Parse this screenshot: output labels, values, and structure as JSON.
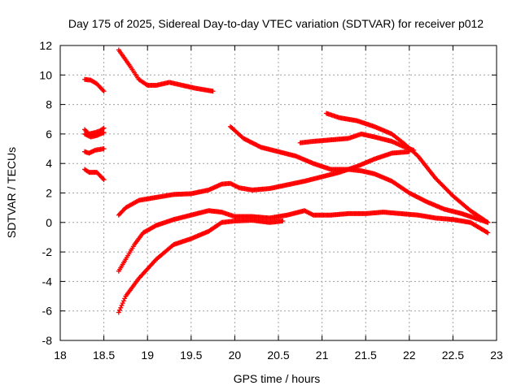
{
  "chart_data": {
    "type": "scatter",
    "title": "Day 175 of 2025, Sidereal Day-to-day VTEC variation (SDTVAR) for receiver p012",
    "xlabel": "GPS time / hours",
    "ylabel": "SDTVAR / TECUs",
    "xlim": [
      18,
      23
    ],
    "ylim": [
      -8,
      12
    ],
    "xticks": [
      "18",
      "18.5",
      "19",
      "19.5",
      "20",
      "20.5",
      "21",
      "21.5",
      "22",
      "22.5",
      "23"
    ],
    "yticks": [
      "-8",
      "-6",
      "-4",
      "-2",
      "0",
      "2",
      "4",
      "6",
      "8",
      "10",
      "12"
    ],
    "grid": true,
    "marker": "plus",
    "color": "#ff0000",
    "series": [
      {
        "name": "track-1",
        "points": [
          [
            18.28,
            9.7
          ],
          [
            18.35,
            9.65
          ],
          [
            18.42,
            9.4
          ],
          [
            18.5,
            8.9
          ]
        ]
      },
      {
        "name": "track-2",
        "points": [
          [
            18.28,
            6.3
          ],
          [
            18.33,
            6.0
          ],
          [
            18.4,
            6.1
          ],
          [
            18.45,
            6.2
          ],
          [
            18.5,
            6.4
          ]
        ]
      },
      {
        "name": "track-3",
        "points": [
          [
            18.28,
            6.0
          ],
          [
            18.35,
            5.8
          ],
          [
            18.42,
            5.9
          ],
          [
            18.5,
            6.1
          ]
        ]
      },
      {
        "name": "track-4",
        "points": [
          [
            18.28,
            4.8
          ],
          [
            18.33,
            4.7
          ],
          [
            18.4,
            4.9
          ],
          [
            18.5,
            5.0
          ]
        ]
      },
      {
        "name": "track-5",
        "points": [
          [
            18.28,
            3.6
          ],
          [
            18.33,
            3.4
          ],
          [
            18.42,
            3.4
          ],
          [
            18.5,
            2.9
          ]
        ]
      },
      {
        "name": "track-6",
        "points": [
          [
            18.67,
            11.7
          ],
          [
            18.8,
            10.6
          ],
          [
            18.9,
            9.7
          ],
          [
            19.0,
            9.3
          ],
          [
            19.1,
            9.3
          ],
          [
            19.25,
            9.5
          ],
          [
            19.4,
            9.3
          ],
          [
            19.55,
            9.1
          ],
          [
            19.75,
            8.9
          ]
        ]
      },
      {
        "name": "track-7",
        "points": [
          [
            18.67,
            0.5
          ],
          [
            18.75,
            1.0
          ],
          [
            18.9,
            1.5
          ],
          [
            19.1,
            1.7
          ],
          [
            19.3,
            1.9
          ],
          [
            19.5,
            1.95
          ],
          [
            19.7,
            2.2
          ],
          [
            19.85,
            2.6
          ],
          [
            19.95,
            2.65
          ],
          [
            20.05,
            2.35
          ],
          [
            20.2,
            2.2
          ],
          [
            20.4,
            2.3
          ],
          [
            20.6,
            2.55
          ],
          [
            20.8,
            2.8
          ],
          [
            21.0,
            3.1
          ],
          [
            21.2,
            3.4
          ],
          [
            21.4,
            3.8
          ],
          [
            21.6,
            4.3
          ],
          [
            21.8,
            4.7
          ],
          [
            22.0,
            4.8
          ]
        ]
      },
      {
        "name": "track-8",
        "points": [
          [
            18.67,
            -3.3
          ],
          [
            18.75,
            -2.5
          ],
          [
            18.85,
            -1.5
          ],
          [
            18.95,
            -0.7
          ],
          [
            19.1,
            -0.2
          ],
          [
            19.3,
            0.2
          ],
          [
            19.5,
            0.5
          ],
          [
            19.7,
            0.8
          ],
          [
            19.85,
            0.7
          ],
          [
            20.0,
            0.4
          ],
          [
            20.2,
            0.4
          ],
          [
            20.4,
            0.3
          ],
          [
            20.6,
            0.5
          ],
          [
            20.8,
            0.8
          ],
          [
            20.9,
            0.5
          ],
          [
            21.1,
            0.5
          ],
          [
            21.3,
            0.6
          ],
          [
            21.5,
            0.6
          ],
          [
            21.7,
            0.7
          ],
          [
            21.9,
            0.6
          ],
          [
            22.1,
            0.5
          ],
          [
            22.3,
            0.3
          ],
          [
            22.5,
            0.2
          ],
          [
            22.7,
            0.0
          ],
          [
            22.9,
            -0.7
          ]
        ]
      },
      {
        "name": "track-9",
        "points": [
          [
            18.67,
            -6.1
          ],
          [
            18.75,
            -5.0
          ],
          [
            18.9,
            -3.8
          ],
          [
            19.1,
            -2.5
          ],
          [
            19.3,
            -1.5
          ],
          [
            19.5,
            -1.1
          ],
          [
            19.7,
            -0.6
          ],
          [
            19.85,
            0.0
          ],
          [
            20.0,
            0.1
          ],
          [
            20.2,
            0.15
          ],
          [
            20.4,
            0.0
          ],
          [
            20.55,
            0.1
          ]
        ]
      },
      {
        "name": "track-10",
        "points": [
          [
            19.95,
            6.5
          ],
          [
            20.1,
            5.7
          ],
          [
            20.3,
            5.1
          ],
          [
            20.5,
            4.8
          ],
          [
            20.7,
            4.5
          ],
          [
            20.9,
            4.0
          ],
          [
            21.1,
            3.6
          ],
          [
            21.3,
            3.6
          ],
          [
            21.45,
            3.5
          ],
          [
            21.6,
            3.3
          ],
          [
            21.8,
            2.8
          ],
          [
            22.0,
            2.0
          ],
          [
            22.2,
            1.4
          ],
          [
            22.4,
            0.9
          ],
          [
            22.6,
            0.6
          ],
          [
            22.8,
            0.2
          ],
          [
            22.9,
            0.0
          ]
        ]
      },
      {
        "name": "track-11",
        "points": [
          [
            20.75,
            5.4
          ],
          [
            20.9,
            5.5
          ],
          [
            21.1,
            5.6
          ],
          [
            21.3,
            5.7
          ],
          [
            21.45,
            6.0
          ],
          [
            21.6,
            5.8
          ],
          [
            21.8,
            5.5
          ],
          [
            21.95,
            5.1
          ],
          [
            22.05,
            4.9
          ]
        ]
      },
      {
        "name": "track-12",
        "points": [
          [
            21.05,
            7.4
          ],
          [
            21.2,
            7.1
          ],
          [
            21.4,
            6.9
          ],
          [
            21.6,
            6.5
          ],
          [
            21.8,
            6.0
          ],
          [
            21.95,
            5.3
          ],
          [
            22.1,
            4.5
          ],
          [
            22.3,
            3.0
          ],
          [
            22.5,
            1.8
          ],
          [
            22.7,
            0.8
          ],
          [
            22.9,
            0.0
          ]
        ]
      }
    ]
  }
}
